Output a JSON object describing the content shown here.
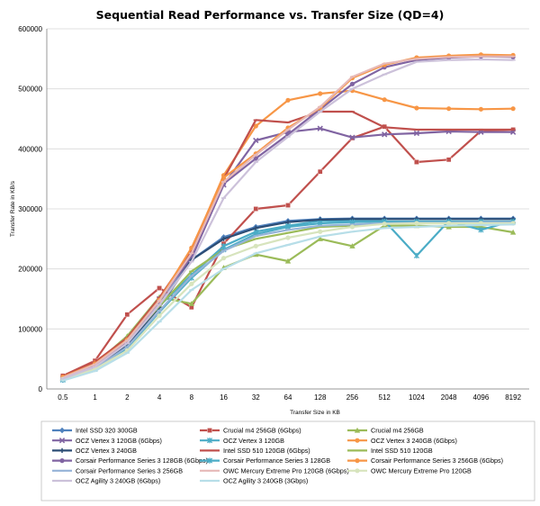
{
  "chart_data": {
    "type": "line",
    "title": "Sequential Read Performance vs. Transfer Size (QD=4)",
    "xlabel": "Transfer Size in KB",
    "ylabel": "Transfer Rate in KB/s",
    "categories": [
      "0.5",
      "1",
      "2",
      "4",
      "8",
      "16",
      "32",
      "64",
      "128",
      "256",
      "512",
      "1024",
      "2048",
      "4096",
      "8192"
    ],
    "ylim": [
      0,
      600000
    ],
    "yticks": [
      0,
      100000,
      200000,
      300000,
      400000,
      500000,
      600000
    ],
    "grid": "horizontal",
    "legend_position": "bottom",
    "series": [
      {
        "name": "Intel SSD 320 300GB",
        "color": "#4f81bd",
        "marker": "diamond",
        "values": [
          15000,
          35000,
          75000,
          140000,
          215000,
          253000,
          270000,
          280000,
          283000,
          284000,
          284000,
          284000,
          284000,
          284000,
          284000
        ]
      },
      {
        "name": "Crucial m4 256GB (6Gbps)",
        "color": "#c0504d",
        "marker": "square",
        "values": [
          22000,
          47000,
          124000,
          168000,
          136000,
          242000,
          300000,
          306000,
          362000,
          418000,
          437000,
          378000,
          382000,
          430000,
          432000
        ]
      },
      {
        "name": "Crucial m4 256GB",
        "color": "#9bbb59",
        "marker": "triangle",
        "values": [
          18000,
          42000,
          88000,
          153000,
          142000,
          202000,
          224000,
          213000,
          250000,
          238000,
          272000,
          272000,
          270000,
          270000,
          261000
        ]
      },
      {
        "name": "OCZ Vertex 3 120GB (6Gbps)",
        "color": "#8064a2",
        "marker": "x",
        "values": [
          18000,
          40000,
          82000,
          150000,
          218000,
          340000,
          414000,
          428000,
          434000,
          419000,
          424000,
          426000,
          429000,
          428000,
          428000
        ]
      },
      {
        "name": "OCZ Vertex 3 120GB",
        "color": "#4bacc6",
        "marker": "star",
        "values": [
          16000,
          34000,
          72000,
          138000,
          190000,
          238000,
          262000,
          272000,
          280000,
          280000,
          280000,
          222000,
          280000,
          265000,
          280000
        ]
      },
      {
        "name": "OCZ Vertex 3 240GB (6Gbps)",
        "color": "#f79646",
        "marker": "circle",
        "values": [
          20000,
          44000,
          80000,
          148000,
          232000,
          356000,
          438000,
          481000,
          492000,
          497000,
          482000,
          468000,
          467000,
          466000,
          467000
        ]
      },
      {
        "name": "OCZ Vertex 3 240GB",
        "color": "#2c4d75",
        "marker": "plus",
        "values": [
          17000,
          36000,
          74000,
          136000,
          215000,
          250000,
          268000,
          278000,
          282000,
          283000,
          283000,
          283000,
          283000,
          283000,
          283000
        ]
      },
      {
        "name": "Intel SSD 510 120GB (6Gbps)",
        "color": "#c0504d",
        "marker": "dash",
        "values": [
          21000,
          45000,
          85000,
          152000,
          230000,
          350000,
          448000,
          444000,
          462000,
          462000,
          436000,
          432000,
          432000,
          432000,
          432000
        ]
      },
      {
        "name": "Intel SSD 510 120GB",
        "color": "#9bbb59",
        "marker": "dash",
        "values": [
          17000,
          38000,
          78000,
          138000,
          196000,
          232000,
          250000,
          260000,
          270000,
          272000,
          275000,
          276000,
          276000,
          276000,
          277000
        ]
      },
      {
        "name": "Corsair Performance Series 3 128GB (6Gbps)",
        "color": "#8064a2",
        "marker": "circle",
        "values": [
          18000,
          40000,
          80000,
          146000,
          222000,
          342000,
          384000,
          424000,
          466000,
          508000,
          536000,
          548000,
          552000,
          554000,
          553000
        ]
      },
      {
        "name": "Corsair Performance Series 3 128GB",
        "color": "#4bacc6",
        "marker": "star",
        "values": [
          15000,
          33000,
          68000,
          128000,
          185000,
          232000,
          258000,
          270000,
          276000,
          278000,
          279000,
          279000,
          279000,
          279000,
          279000
        ]
      },
      {
        "name": "Corsair Performance Series 3 256GB (6Gbps)",
        "color": "#f79646",
        "marker": "circle",
        "values": [
          20000,
          42000,
          82000,
          148000,
          235000,
          352000,
          392000,
          435000,
          468000,
          518000,
          540000,
          552000,
          555000,
          557000,
          556000
        ]
      },
      {
        "name": "Corsair Performance Series 3 256GB",
        "color": "#95b3d7",
        "marker": "dash",
        "values": [
          16000,
          34000,
          70000,
          130000,
          188000,
          230000,
          255000,
          265000,
          272000,
          274000,
          276000,
          277000,
          277000,
          278000,
          278000
        ]
      },
      {
        "name": "OWC Mercury Extreme Pro 120GB (6Gbps)",
        "color": "#e6b9b8",
        "marker": "dash",
        "values": [
          19000,
          41000,
          81000,
          147000,
          226000,
          345000,
          390000,
          432000,
          470000,
          520000,
          542000,
          550000,
          553000,
          554000,
          554000
        ]
      },
      {
        "name": "OWC Mercury Extreme Pro 120GB",
        "color": "#d7e4bd",
        "marker": "circle",
        "values": [
          16000,
          33000,
          64000,
          122000,
          175000,
          218000,
          238000,
          252000,
          262000,
          270000,
          275000,
          276000,
          276000,
          276000,
          276000
        ]
      },
      {
        "name": "OCZ Agility 3 240GB (6Gbps)",
        "color": "#ccc1da",
        "marker": "dash",
        "values": [
          17000,
          37000,
          76000,
          140000,
          212000,
          318000,
          378000,
          420000,
          462000,
          500000,
          524000,
          545000,
          548000,
          549000,
          548000
        ]
      },
      {
        "name": "OCZ Agility 3 240GB (3Gbps)",
        "color": "#b7dee8",
        "marker": "dash",
        "values": [
          14000,
          30000,
          60000,
          112000,
          165000,
          200000,
          226000,
          240000,
          254000,
          262000,
          268000,
          270000,
          272000,
          273000,
          274000
        ]
      }
    ]
  }
}
